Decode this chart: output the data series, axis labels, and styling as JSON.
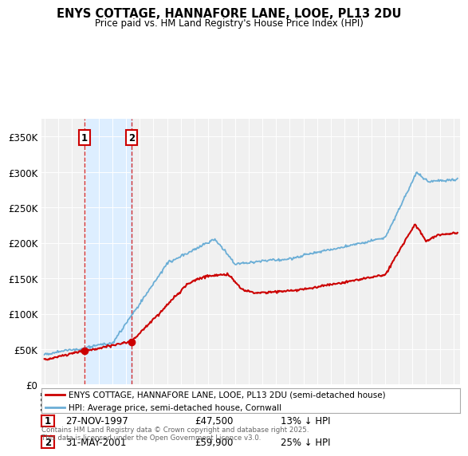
{
  "title": "ENYS COTTAGE, HANNAFORE LANE, LOOE, PL13 2DU",
  "subtitle": "Price paid vs. HM Land Registry's House Price Index (HPI)",
  "ylabel_ticks": [
    "£0",
    "£50K",
    "£100K",
    "£150K",
    "£200K",
    "£250K",
    "£300K",
    "£350K"
  ],
  "ytick_values": [
    0,
    50000,
    100000,
    150000,
    200000,
    250000,
    300000,
    350000
  ],
  "ylim": [
    0,
    375000
  ],
  "xlim_start": 1994.8,
  "xlim_end": 2025.5,
  "sale1_x": 1997.92,
  "sale1_y": 47500,
  "sale1_label": "1",
  "sale2_x": 2001.42,
  "sale2_y": 59900,
  "sale2_label": "2",
  "property_color": "#cc0000",
  "hpi_color": "#6baed6",
  "shade_color": "#ddeeff",
  "legend_property": "ENYS COTTAGE, HANNAFORE LANE, LOOE, PL13 2DU (semi-detached house)",
  "legend_hpi": "HPI: Average price, semi-detached house, Cornwall",
  "sale_info": [
    {
      "num": "1",
      "date": "27-NOV-1997",
      "price": "£47,500",
      "hpi": "13% ↓ HPI"
    },
    {
      "num": "2",
      "date": "31-MAY-2001",
      "price": "£59,900",
      "hpi": "25% ↓ HPI"
    }
  ],
  "footer": "Contains HM Land Registry data © Crown copyright and database right 2025.\nThis data is licensed under the Open Government Licence v3.0.",
  "background_color": "#ffffff",
  "plot_bg_color": "#f0f0f0"
}
